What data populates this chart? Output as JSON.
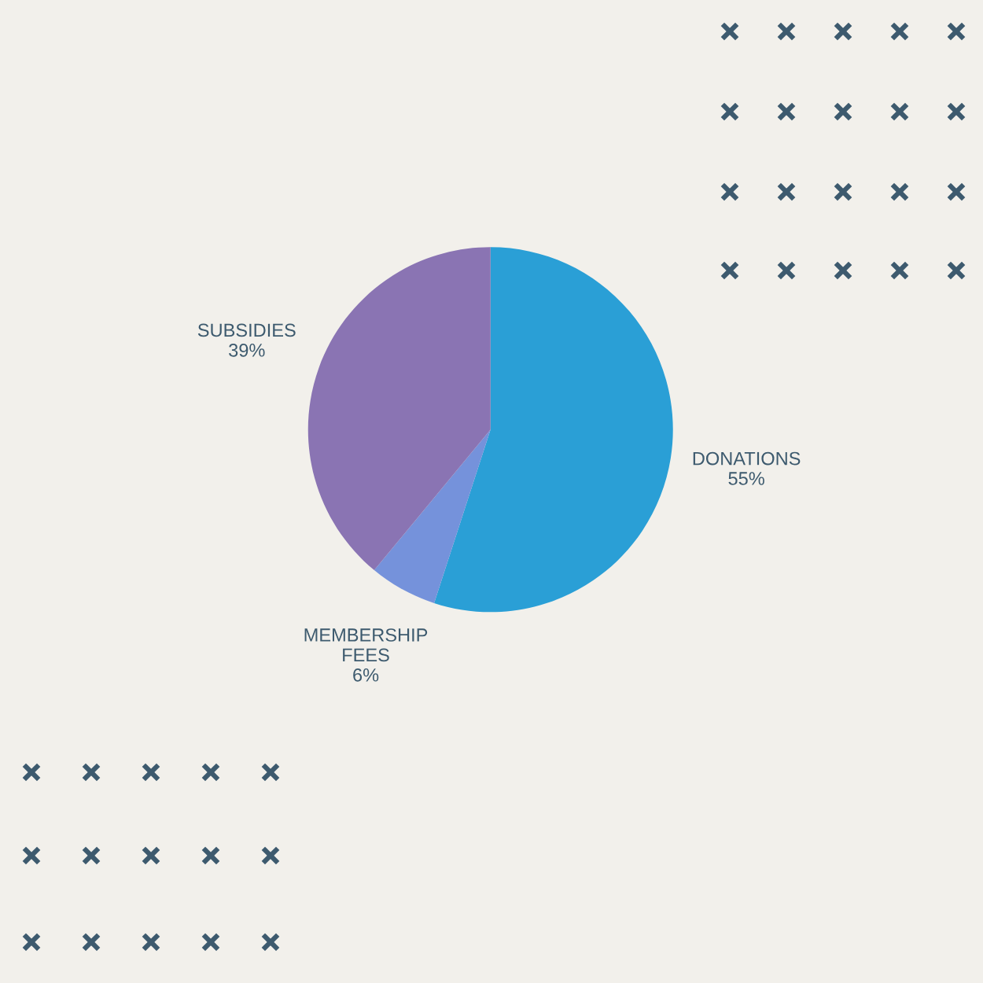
{
  "chart_data": {
    "type": "pie",
    "categories": [
      "DONATIONS",
      "MEMBERSHIP FEES",
      "SUBSIDIES"
    ],
    "values": [
      55,
      6,
      39
    ],
    "value_labels": [
      "55%",
      "6%",
      "39%"
    ],
    "colors": [
      "#2a9fd6",
      "#7592db",
      "#8a74b3"
    ]
  }
}
